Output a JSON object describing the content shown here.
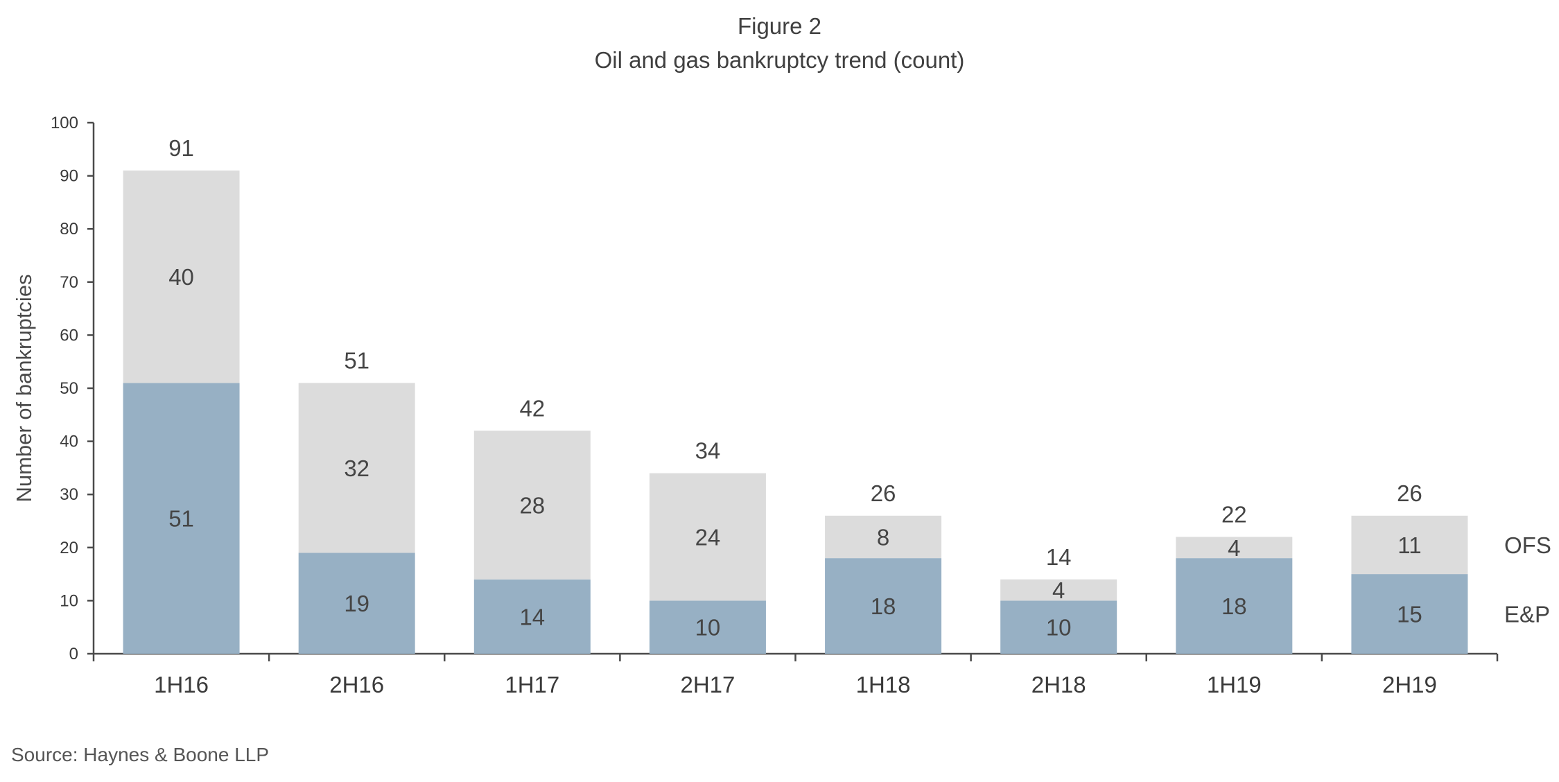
{
  "figure_label": "Figure 2",
  "chart_data": {
    "type": "bar",
    "stacked": true,
    "title": "Figure 2",
    "subtitle": "Oil and gas bankruptcy trend (count)",
    "xlabel": "",
    "ylabel": "Number of bankruptcies",
    "ylim": [
      0,
      100
    ],
    "yticks": [
      0,
      10,
      20,
      30,
      40,
      50,
      60,
      70,
      80,
      90,
      100
    ],
    "categories": [
      "1H16",
      "2H16",
      "1H17",
      "2H17",
      "1H18",
      "2H18",
      "1H19",
      "2H19"
    ],
    "series": [
      {
        "name": "E&P",
        "color": "#97b0c4",
        "values": [
          51,
          19,
          14,
          10,
          18,
          10,
          18,
          15
        ]
      },
      {
        "name": "OFS",
        "color": "#dcdcdc",
        "values": [
          40,
          32,
          28,
          24,
          8,
          4,
          4,
          11
        ]
      }
    ],
    "totals": [
      91,
      51,
      42,
      34,
      26,
      14,
      22,
      26
    ],
    "legend": "right, inline labels",
    "grid": false
  },
  "source": "Source: Haynes & Boone LLP"
}
